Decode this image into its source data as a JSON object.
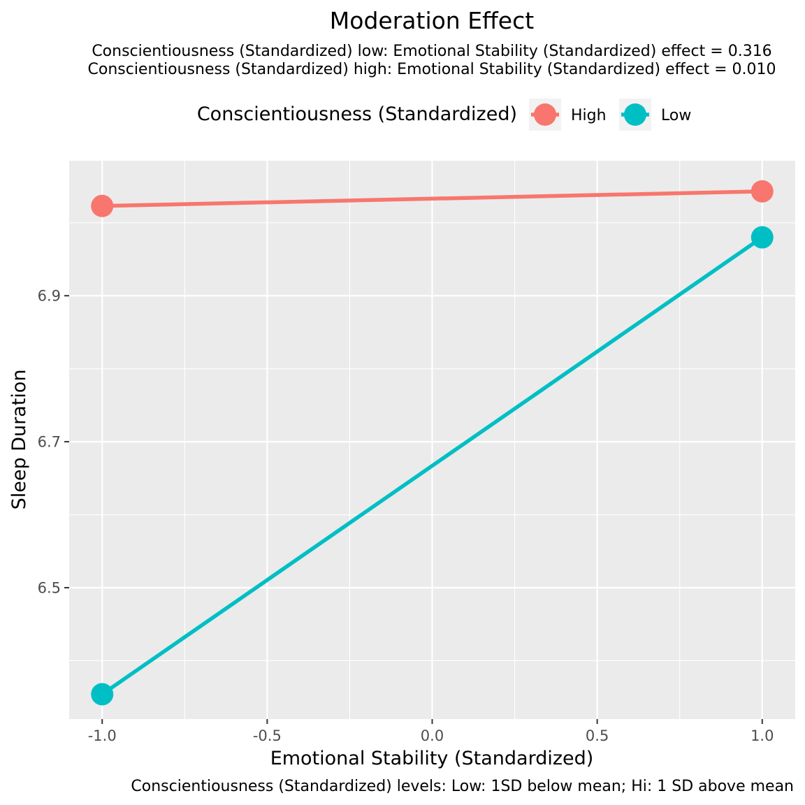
{
  "chart_data": {
    "type": "line",
    "title": "Moderation Effect",
    "subtitle": [
      "Conscientiousness (Standardized) low: Emotional Stability (Standardized) effect = 0.316",
      "Conscientiousness (Standardized) high: Emotional Stability (Standardized) effect = 0.010"
    ],
    "caption": "Conscientiousness (Standardized) levels: Low: 1SD below mean; Hi: 1 SD above mean",
    "xlabel": "Emotional Stability (Standardized)",
    "ylabel": "Sleep Duration",
    "xlim": [
      -1.1,
      1.1
    ],
    "ylim": [
      6.32,
      7.085
    ],
    "x_ticks": [
      -1.0,
      -0.5,
      0.0,
      0.5,
      1.0
    ],
    "x_tick_labels": [
      "-1.0",
      "-0.5",
      "0.0",
      "0.5",
      "1.0"
    ],
    "y_ticks": [
      6.5,
      6.7,
      6.9
    ],
    "y_tick_labels": [
      "6.5",
      "6.7",
      "6.9"
    ],
    "legend": {
      "title": "Conscientiousness (Standardized)",
      "placement": "top"
    },
    "grid": true,
    "series": [
      {
        "name": "High",
        "color": "#F8766D",
        "points": [
          {
            "x": -1.0,
            "y": 7.023
          },
          {
            "x": 1.0,
            "y": 7.043
          }
        ]
      },
      {
        "name": "Low",
        "color": "#00BFC4",
        "points": [
          {
            "x": -1.0,
            "y": 6.354
          },
          {
            "x": 1.0,
            "y": 6.98
          }
        ]
      }
    ]
  }
}
